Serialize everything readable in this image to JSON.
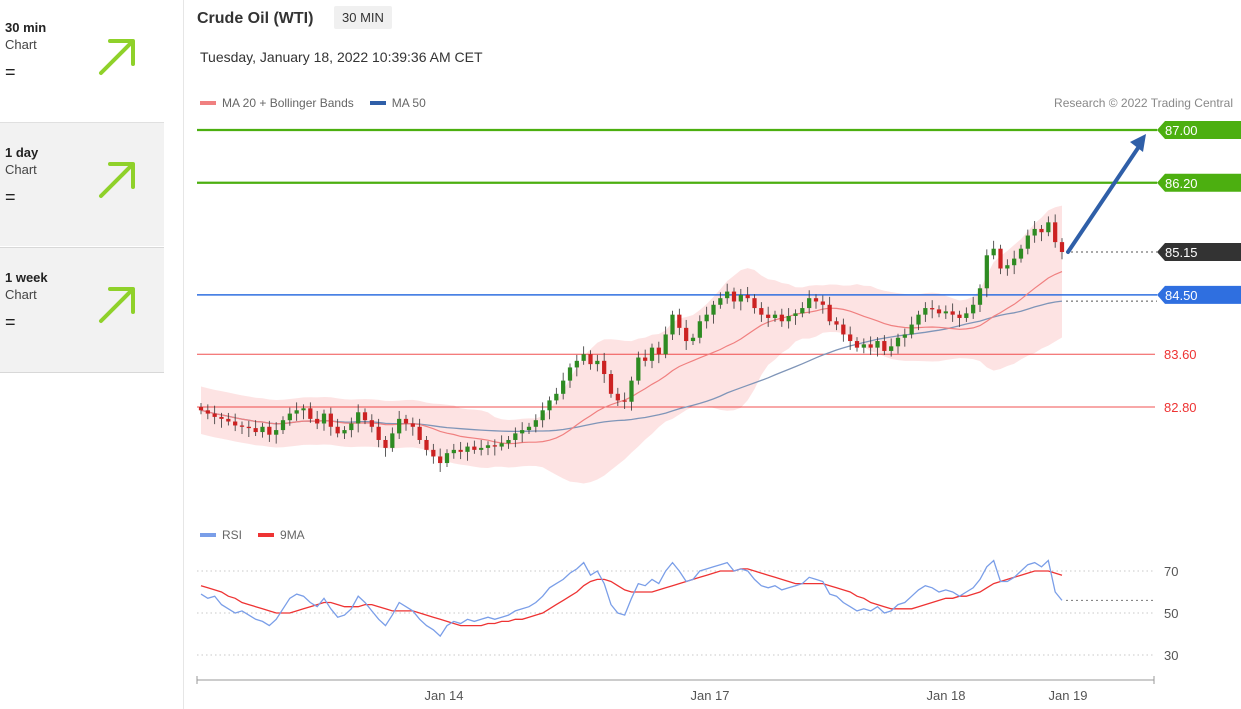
{
  "sidebar": {
    "cards": [
      {
        "period": "30 min",
        "type": "Chart",
        "signal": "="
      },
      {
        "period": "1 day",
        "type": "Chart",
        "signal": "="
      },
      {
        "period": "1 week",
        "type": "Chart",
        "signal": "="
      }
    ],
    "arrow_color": "#8fd12a"
  },
  "header": {
    "title": "Crude Oil (WTI)",
    "interval": "30 MIN",
    "timestamp": "Tuesday, January 18, 2022 10:39:36 AM CET"
  },
  "legend": {
    "ma20": "MA 20 + Bollinger Bands",
    "ma50": "MA 50",
    "rsi": "RSI",
    "rsi_ma": "9MA"
  },
  "copyright": "Research © 2022 Trading Central",
  "colors": {
    "green": "#4caf10",
    "blue": "#2f6fe0",
    "red": "#ee3333",
    "ma20": "#f08080",
    "ma50": "#7f95b8",
    "band": "#fde0e0",
    "candle_up": "#2e8b22",
    "candle_down": "#cc2222",
    "rsi": "#7a9ee8",
    "rsi_ma": "#ee3333",
    "arrow": "#2f5fa8"
  },
  "chart_data": [
    {
      "type": "candlestick",
      "ylim": [
        81.7,
        87.3
      ],
      "x_ticks": [
        "Jan 14",
        "Jan 17",
        "Jan 18",
        "Jan 19"
      ],
      "levels": [
        {
          "value": 87.0,
          "label": "87.00",
          "kind": "resistance"
        },
        {
          "value": 86.2,
          "label": "86.20",
          "kind": "resistance"
        },
        {
          "value": 84.5,
          "label": "84.50",
          "kind": "pivot"
        },
        {
          "value": 83.6,
          "label": "83.60",
          "kind": "support"
        },
        {
          "value": 82.8,
          "label": "82.80",
          "kind": "support"
        }
      ],
      "last_price": {
        "value": 85.15,
        "label": "85.15"
      },
      "target_arrow": {
        "from": 85.15,
        "to": 87.0
      },
      "close": [
        82.75,
        82.7,
        82.65,
        82.62,
        82.58,
        82.52,
        82.5,
        82.48,
        82.42,
        82.5,
        82.38,
        82.45,
        82.6,
        82.7,
        82.75,
        82.78,
        82.62,
        82.55,
        82.7,
        82.5,
        82.4,
        82.45,
        82.55,
        82.72,
        82.6,
        82.5,
        82.3,
        82.18,
        82.4,
        82.62,
        82.55,
        82.5,
        82.3,
        82.15,
        82.05,
        81.95,
        82.1,
        82.15,
        82.12,
        82.2,
        82.15,
        82.18,
        82.22,
        82.2,
        82.25,
        82.3,
        82.4,
        82.45,
        82.5,
        82.6,
        82.75,
        82.9,
        83.0,
        83.2,
        83.4,
        83.5,
        83.6,
        83.45,
        83.5,
        83.3,
        83.0,
        82.9,
        82.88,
        83.2,
        83.55,
        83.5,
        83.7,
        83.6,
        83.9,
        84.2,
        84.0,
        83.8,
        83.85,
        84.1,
        84.2,
        84.35,
        84.45,
        84.55,
        84.4,
        84.5,
        84.45,
        84.3,
        84.2,
        84.15,
        84.2,
        84.1,
        84.18,
        84.22,
        84.3,
        84.45,
        84.4,
        84.35,
        84.1,
        84.05,
        83.9,
        83.8,
        83.7,
        83.75,
        83.7,
        83.8,
        83.65,
        83.72,
        83.85,
        83.9,
        84.05,
        84.2,
        84.3,
        84.28,
        84.22,
        84.25,
        84.2,
        84.15,
        84.22,
        84.35,
        84.6,
        85.1,
        85.2,
        84.9,
        84.95,
        85.05,
        85.2,
        85.4,
        85.5,
        85.45,
        85.6,
        85.3,
        85.15
      ]
    },
    {
      "type": "line",
      "ylim": [
        30,
        70
      ],
      "y_ticks": [
        70,
        50,
        30
      ],
      "series": [
        {
          "name": "RSI",
          "values": [
            59,
            57,
            58,
            54,
            52,
            50,
            51,
            49,
            47,
            46,
            44,
            47,
            52,
            57,
            59,
            58,
            55,
            53,
            57,
            52,
            48,
            49,
            52,
            58,
            55,
            51,
            47,
            44,
            49,
            55,
            53,
            51,
            47,
            44,
            42,
            39,
            44,
            46,
            45,
            47,
            46,
            47,
            48,
            47,
            48,
            49,
            51,
            52,
            53,
            55,
            58,
            62,
            64,
            66,
            69,
            71,
            74,
            68,
            70,
            64,
            54,
            50,
            49,
            57,
            64,
            63,
            66,
            64,
            70,
            74,
            70,
            65,
            66,
            70,
            71,
            72,
            73,
            74,
            70,
            71,
            70,
            66,
            63,
            62,
            63,
            61,
            62,
            63,
            64,
            67,
            66,
            65,
            59,
            58,
            55,
            53,
            51,
            52,
            51,
            53,
            50,
            51,
            54,
            55,
            58,
            61,
            63,
            62,
            60,
            61,
            60,
            58,
            60,
            62,
            66,
            72,
            75,
            65,
            65,
            67,
            70,
            73,
            74,
            72,
            75,
            60,
            56
          ]
        },
        {
          "name": "9MA",
          "values": [
            63,
            62,
            61,
            60,
            58,
            57,
            55,
            54,
            53,
            52,
            51,
            50,
            50,
            50,
            51,
            52,
            53,
            54,
            55,
            55,
            54,
            53,
            53,
            53,
            54,
            54,
            53,
            52,
            51,
            51,
            51,
            51,
            50,
            49,
            48,
            47,
            46,
            45,
            44,
            44,
            44,
            44,
            45,
            45,
            46,
            46,
            47,
            47,
            48,
            49,
            50,
            52,
            54,
            56,
            58,
            60,
            63,
            65,
            66,
            66,
            65,
            63,
            61,
            60,
            60,
            60,
            60,
            61,
            62,
            63,
            64,
            65,
            66,
            67,
            68,
            69,
            70,
            70,
            70,
            71,
            71,
            70,
            69,
            68,
            67,
            66,
            65,
            64,
            64,
            64,
            64,
            64,
            63,
            62,
            61,
            60,
            58,
            57,
            55,
            54,
            53,
            52,
            52,
            52,
            52,
            53,
            54,
            55,
            56,
            57,
            57,
            58,
            58,
            59,
            60,
            62,
            64,
            65,
            66,
            67,
            68,
            69,
            70,
            70,
            70,
            69,
            68
          ]
        }
      ]
    }
  ]
}
